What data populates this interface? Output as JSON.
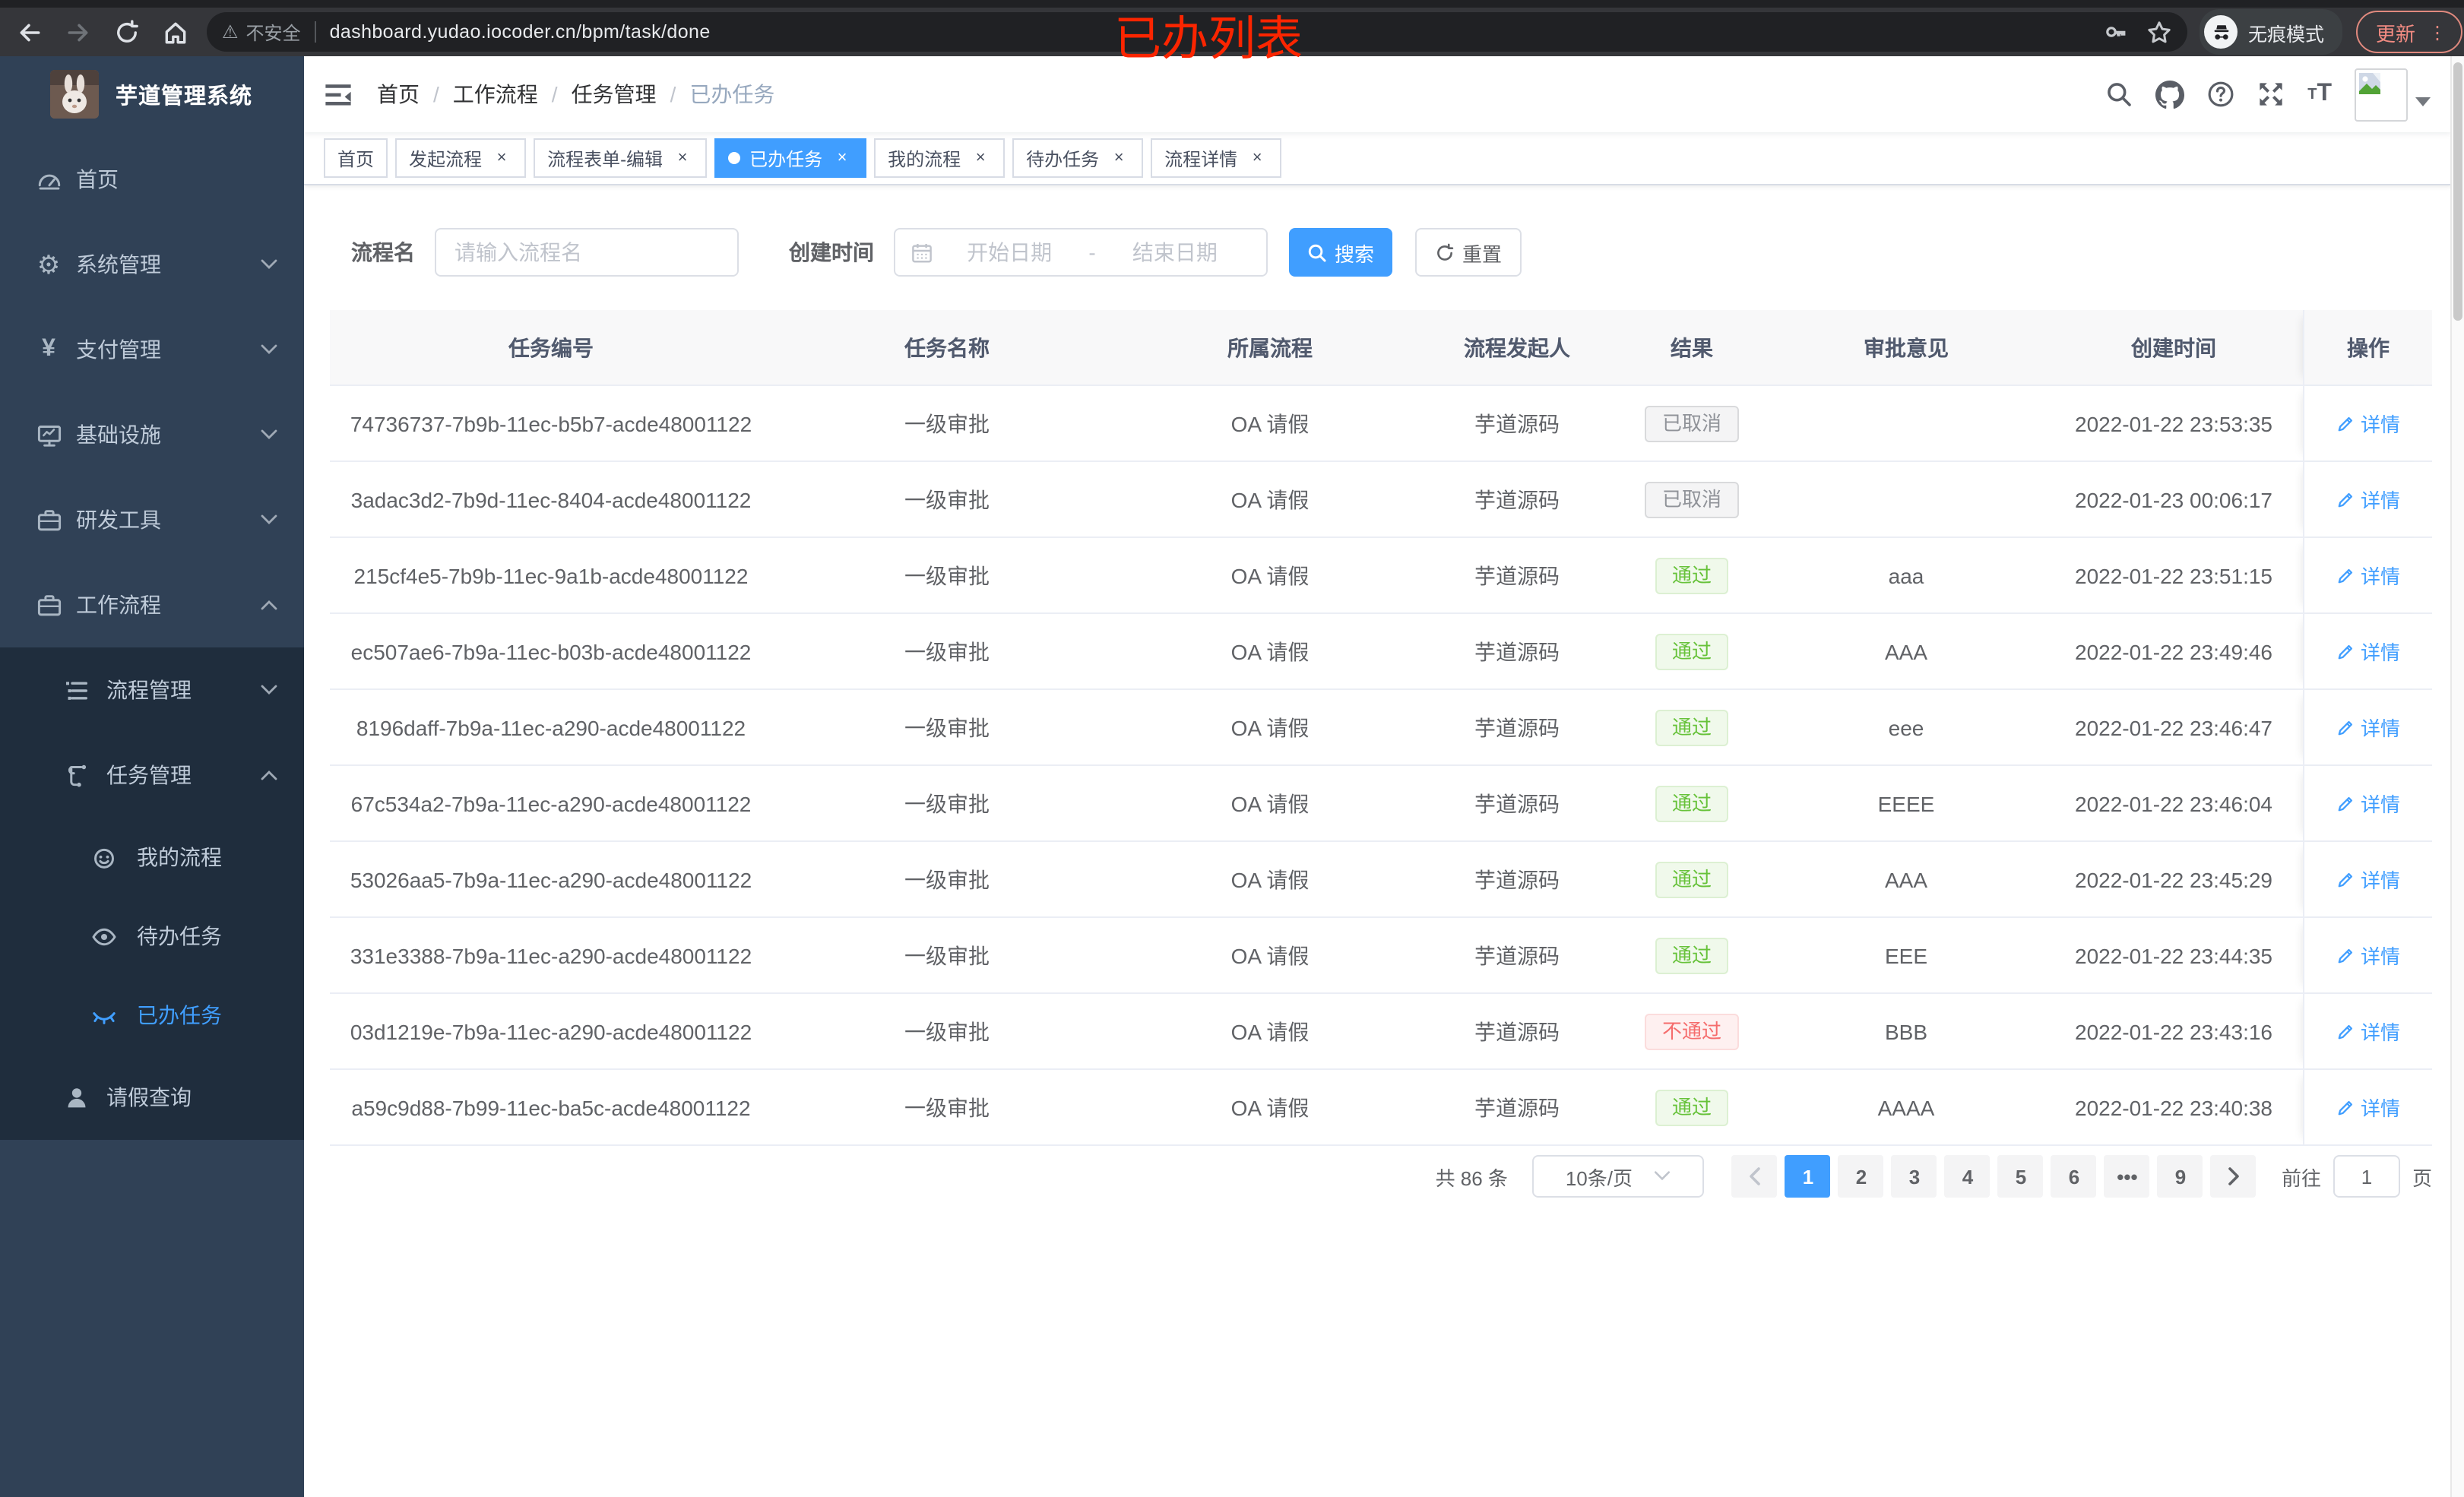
{
  "browser": {
    "security_label": "不安全",
    "url": "dashboard.yudao.iocoder.cn/bpm/task/done",
    "annotation": "已办列表",
    "incognito_label": "无痕模式",
    "update_label": "更新",
    "update_color": "#f28b82"
  },
  "sidebar": {
    "title": "芋道管理系统",
    "items": [
      {
        "label": "首页",
        "icon": "dashboard-icon",
        "level": 1,
        "chevron": "",
        "group": "main",
        "active": false
      },
      {
        "label": "系统管理",
        "icon": "gear-icon",
        "level": 1,
        "chevron": "down",
        "group": "main",
        "active": false
      },
      {
        "label": "支付管理",
        "icon": "yen-icon",
        "level": 1,
        "chevron": "down",
        "group": "main",
        "active": false
      },
      {
        "label": "基础设施",
        "icon": "monitor-icon",
        "level": 1,
        "chevron": "down",
        "group": "main",
        "active": false
      },
      {
        "label": "研发工具",
        "icon": "briefcase-icon",
        "level": 1,
        "chevron": "down",
        "group": "main",
        "active": false
      },
      {
        "label": "工作流程",
        "icon": "briefcase-icon",
        "level": 1,
        "chevron": "up",
        "group": "main",
        "active": false
      },
      {
        "label": "流程管理",
        "icon": "list-tree-icon",
        "level": 2,
        "chevron": "down",
        "group": "sub",
        "active": false
      },
      {
        "label": "任务管理",
        "icon": "flow-icon",
        "level": 2,
        "chevron": "up",
        "group": "sub",
        "active": false
      },
      {
        "label": "我的流程",
        "icon": "face-icon",
        "level": 3,
        "chevron": "",
        "group": "sub",
        "active": false
      },
      {
        "label": "待办任务",
        "icon": "eye-icon",
        "level": 3,
        "chevron": "",
        "group": "sub",
        "active": false
      },
      {
        "label": "已办任务",
        "icon": "eye-closed-icon",
        "level": 3,
        "chevron": "",
        "group": "sub",
        "active": true
      },
      {
        "label": "请假查询",
        "icon": "user-icon",
        "level": 2,
        "chevron": "",
        "group": "sub",
        "active": false
      }
    ]
  },
  "breadcrumb": {
    "items": [
      "首页",
      "工作流程",
      "任务管理",
      "已办任务"
    ],
    "separator": "/"
  },
  "tabs": [
    {
      "label": "首页",
      "closable": false,
      "active": false
    },
    {
      "label": "发起流程",
      "closable": true,
      "active": false
    },
    {
      "label": "流程表单-编辑",
      "closable": true,
      "active": false
    },
    {
      "label": "已办任务",
      "closable": true,
      "active": true
    },
    {
      "label": "我的流程",
      "closable": true,
      "active": false
    },
    {
      "label": "待办任务",
      "closable": true,
      "active": false
    },
    {
      "label": "流程详情",
      "closable": true,
      "active": false
    }
  ],
  "filters": {
    "name_label": "流程名",
    "name_placeholder": "请输入流程名",
    "time_label": "创建时间",
    "start_placeholder": "开始日期",
    "range_separator": "-",
    "end_placeholder": "结束日期",
    "search_label": "搜索",
    "reset_label": "重置"
  },
  "table": {
    "columns": [
      "任务编号",
      "任务名称",
      "所属流程",
      "流程发起人",
      "结果",
      "审批意见",
      "创建时间",
      "操作"
    ],
    "action_label": "详情",
    "rows": [
      {
        "id": "74736737-7b9b-11ec-b5b7-acde48001122",
        "name": "一级审批",
        "process": "OA 请假",
        "starter": "芋道源码",
        "result": "已取消",
        "result_type": "info",
        "comment": "",
        "time": "2022-01-22 23:53:35"
      },
      {
        "id": "3adac3d2-7b9d-11ec-8404-acde48001122",
        "name": "一级审批",
        "process": "OA 请假",
        "starter": "芋道源码",
        "result": "已取消",
        "result_type": "info",
        "comment": "",
        "time": "2022-01-23 00:06:17"
      },
      {
        "id": "215cf4e5-7b9b-11ec-9a1b-acde48001122",
        "name": "一级审批",
        "process": "OA 请假",
        "starter": "芋道源码",
        "result": "通过",
        "result_type": "success",
        "comment": "aaa",
        "time": "2022-01-22 23:51:15"
      },
      {
        "id": "ec507ae6-7b9a-11ec-b03b-acde48001122",
        "name": "一级审批",
        "process": "OA 请假",
        "starter": "芋道源码",
        "result": "通过",
        "result_type": "success",
        "comment": "AAA",
        "time": "2022-01-22 23:49:46"
      },
      {
        "id": "8196daff-7b9a-11ec-a290-acde48001122",
        "name": "一级审批",
        "process": "OA 请假",
        "starter": "芋道源码",
        "result": "通过",
        "result_type": "success",
        "comment": "eee",
        "time": "2022-01-22 23:46:47"
      },
      {
        "id": "67c534a2-7b9a-11ec-a290-acde48001122",
        "name": "一级审批",
        "process": "OA 请假",
        "starter": "芋道源码",
        "result": "通过",
        "result_type": "success",
        "comment": "EEEE",
        "time": "2022-01-22 23:46:04"
      },
      {
        "id": "53026aa5-7b9a-11ec-a290-acde48001122",
        "name": "一级审批",
        "process": "OA 请假",
        "starter": "芋道源码",
        "result": "通过",
        "result_type": "success",
        "comment": "AAA",
        "time": "2022-01-22 23:45:29"
      },
      {
        "id": "331e3388-7b9a-11ec-a290-acde48001122",
        "name": "一级审批",
        "process": "OA 请假",
        "starter": "芋道源码",
        "result": "通过",
        "result_type": "success",
        "comment": "EEE",
        "time": "2022-01-22 23:44:35"
      },
      {
        "id": "03d1219e-7b9a-11ec-a290-acde48001122",
        "name": "一级审批",
        "process": "OA 请假",
        "starter": "芋道源码",
        "result": "不通过",
        "result_type": "danger",
        "comment": "BBB",
        "time": "2022-01-22 23:43:16"
      },
      {
        "id": "a59c9d88-7b99-11ec-ba5c-acde48001122",
        "name": "一级审批",
        "process": "OA 请假",
        "starter": "芋道源码",
        "result": "通过",
        "result_type": "success",
        "comment": "AAAA",
        "time": "2022-01-22 23:40:38"
      }
    ]
  },
  "pagination": {
    "total_label": "共 86 条",
    "page_size_label": "10条/页",
    "pages": [
      "1",
      "2",
      "3",
      "4",
      "5",
      "6",
      "•••",
      "9"
    ],
    "active_page": "1",
    "goto_label": "前往",
    "goto_value": "1",
    "goto_unit": "页"
  },
  "colors": {
    "accent": "#409eff",
    "success": "#67c23a",
    "danger": "#f56c6c",
    "info": "#909399",
    "sidebar_bg": "#304156",
    "sidebar_sub_bg": "#1f2d3d"
  }
}
